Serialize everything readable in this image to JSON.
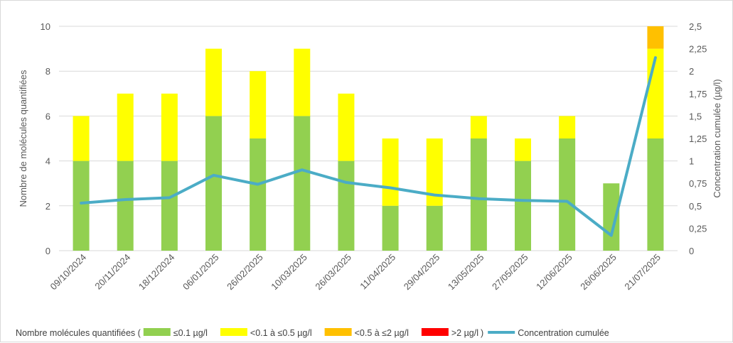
{
  "chart_data": {
    "type": "bar",
    "stacked": true,
    "categories": [
      "09/10/2024",
      "20/11/2024",
      "18/12/2024",
      "06/01/2025",
      "26/02/2025",
      "10/03/2025",
      "26/03/2025",
      "11/04/2025",
      "29/04/2025",
      "13/05/2025",
      "27/05/2025",
      "12/06/2025",
      "26/06/2025",
      "21/07/2025"
    ],
    "series": [
      {
        "name": "≤0.1 µg/l",
        "color": "#92d050",
        "values": [
          4,
          4,
          4,
          6,
          5,
          6,
          4,
          2,
          2,
          5,
          4,
          5,
          3,
          5
        ]
      },
      {
        "name": "<0.1 à ≤0.5 µg/l",
        "color": "#ffff00",
        "values": [
          2,
          3,
          3,
          3,
          3,
          3,
          3,
          3,
          3,
          1,
          1,
          1,
          0,
          4
        ]
      },
      {
        "name": "<0.5 à ≤2 µg/l",
        "color": "#ffc000",
        "values": [
          0,
          0,
          0,
          0,
          0,
          0,
          0,
          0,
          0,
          0,
          0,
          0,
          0,
          1
        ]
      },
      {
        "name": ">2 µg/l",
        "color": "#ff0000",
        "values": [
          0,
          0,
          0,
          0,
          0,
          0,
          0,
          0,
          0,
          0,
          0,
          0,
          0,
          0
        ]
      }
    ],
    "line_series": {
      "name": "Concentration cumulée",
      "color": "#4bacc6",
      "axis": "right",
      "values": [
        0.53,
        0.57,
        0.59,
        0.84,
        0.74,
        0.9,
        0.76,
        0.7,
        0.62,
        0.58,
        0.56,
        0.55,
        0.17,
        2.15
      ]
    },
    "ylabel": "Nombre de molécules quantifiées",
    "ylabel_right": "Concentration cumulée (µg/l)",
    "ylim": [
      0,
      10
    ],
    "ylim_right": [
      0,
      2.5
    ],
    "yticks": [
      "0",
      "2",
      "4",
      "6",
      "8",
      "10"
    ],
    "yticks_right": [
      "0",
      "0,25",
      "0,5",
      "0,75",
      "1",
      "1,25",
      "1,5",
      "1,75",
      "2",
      "2,25",
      "2,5"
    ],
    "grid": true,
    "legend_position": "bottom",
    "legend_prefix": "Nombre molécules quantifiées (",
    "legend_close": ")"
  }
}
